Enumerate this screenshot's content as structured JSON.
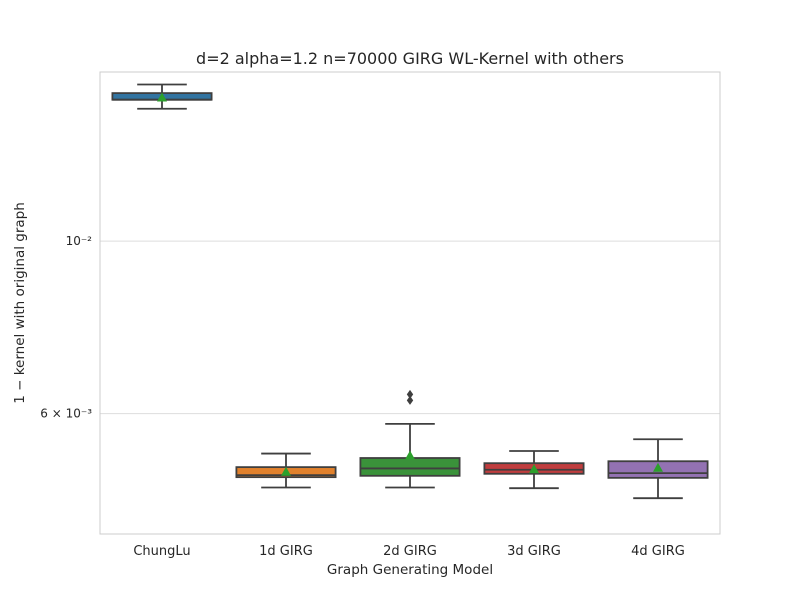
{
  "chart_data": {
    "type": "box",
    "title": "d=2 alpha=1.2 n=70000 GIRG WL-Kernel with others",
    "xlabel": "Graph Generating Model",
    "ylabel": "1 − kernel with original graph",
    "yscale": "log",
    "ylim": [
      0.0042,
      0.0165
    ],
    "y_tick_labels": [
      {
        "value": 0.01,
        "label": "10⁻²"
      },
      {
        "value": 0.006,
        "label": "6 × 10⁻³"
      }
    ],
    "grid": true,
    "categories": [
      "ChungLu",
      "1d GIRG",
      "2d GIRG",
      "3d GIRG",
      "4d GIRG"
    ],
    "colors": [
      "#3274a1",
      "#e1812c",
      "#3a923a",
      "#c03d3e",
      "#9372b2"
    ],
    "mean_marker_color": "#2ca02c",
    "boxes": [
      {
        "whislo": 0.0148,
        "q1": 0.0152,
        "med": 0.0152,
        "q3": 0.0155,
        "whishi": 0.0159,
        "mean": 0.0153,
        "fliers": []
      },
      {
        "whislo": 0.00482,
        "q1": 0.00497,
        "med": 0.005,
        "q3": 0.00512,
        "whishi": 0.00533,
        "mean": 0.00505,
        "fliers": []
      },
      {
        "whislo": 0.00482,
        "q1": 0.00499,
        "med": 0.0051,
        "q3": 0.00526,
        "whishi": 0.00582,
        "mean": 0.0053,
        "fliers": [
          0.00624,
          0.00635
        ]
      },
      {
        "whislo": 0.00481,
        "q1": 0.00502,
        "med": 0.00508,
        "q3": 0.00518,
        "whishi": 0.00537,
        "mean": 0.00509,
        "fliers": []
      },
      {
        "whislo": 0.00467,
        "q1": 0.00496,
        "med": 0.00503,
        "q3": 0.00521,
        "whishi": 0.00556,
        "mean": 0.00511,
        "fliers": []
      }
    ]
  }
}
